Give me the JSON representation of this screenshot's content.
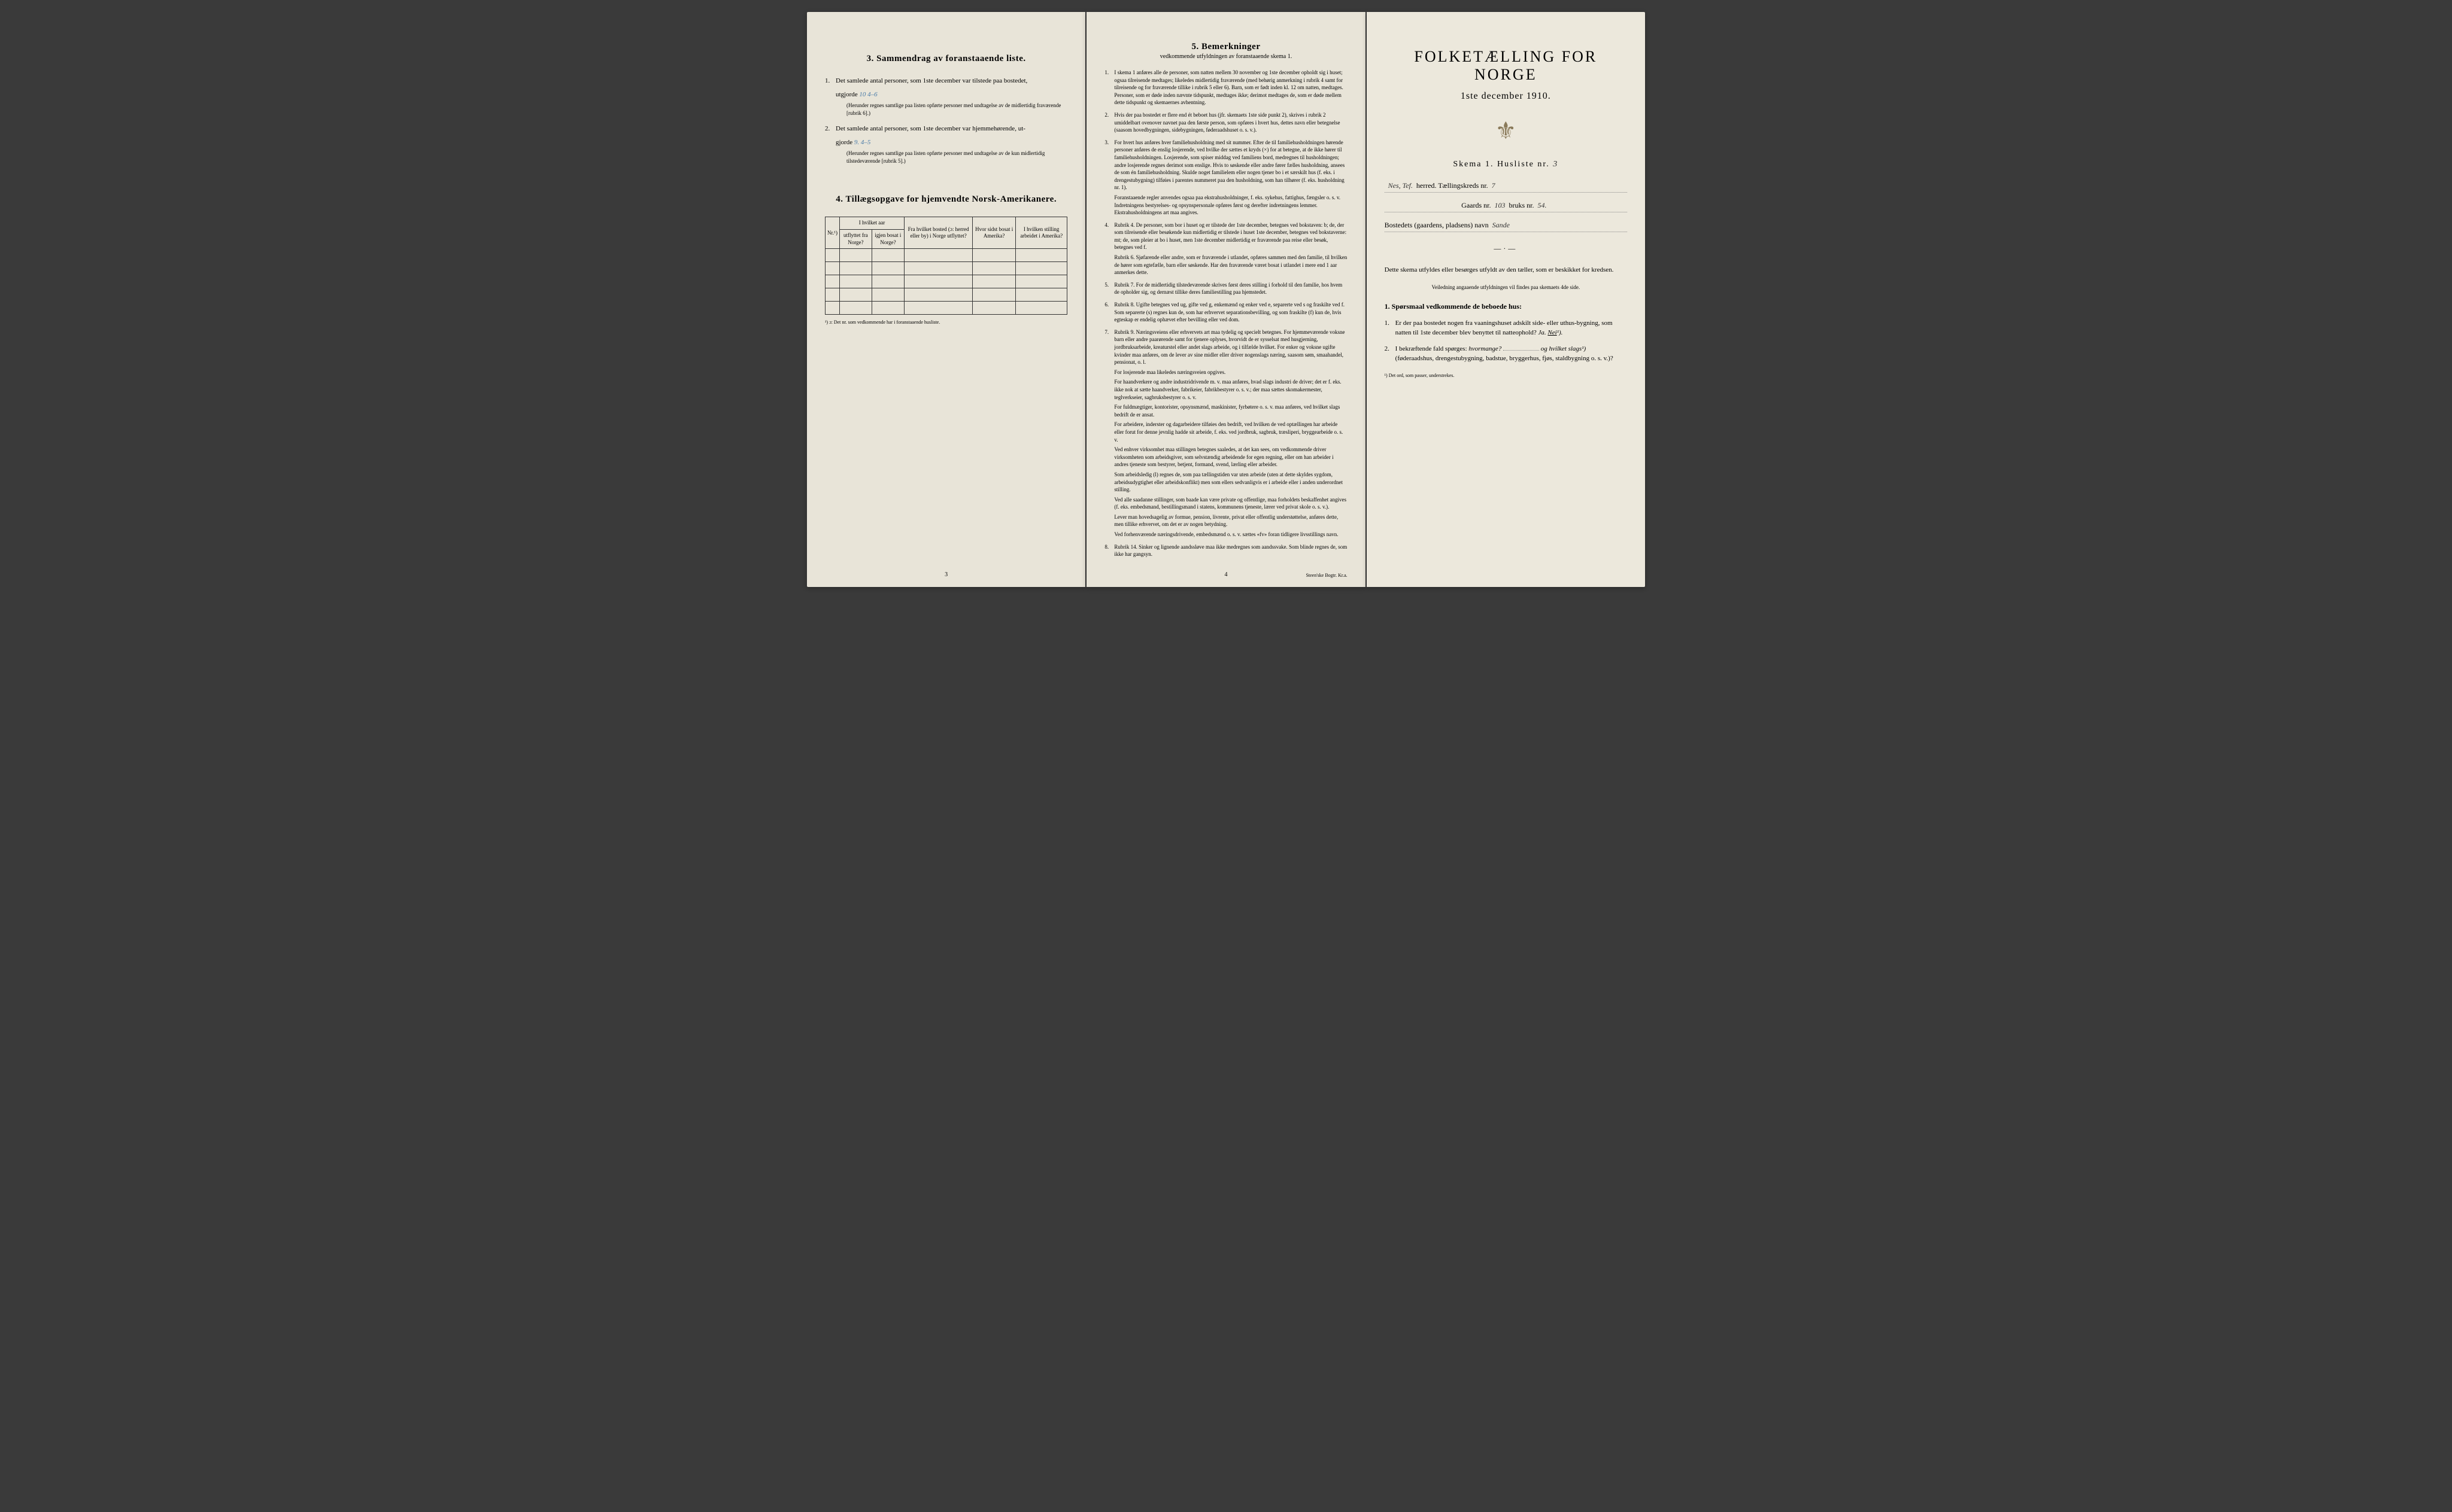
{
  "page_left": {
    "section3": {
      "title": "3.  Sammendrag av foranstaaende liste.",
      "item1_text": "Det samlede antal personer, som 1ste december var tilstede paa bostedet,",
      "item1_label": "utgjorde",
      "item1_value": "10  4–6",
      "item1_note": "(Herunder regnes samtlige paa listen opførte personer med undtagelse av de midlertidig fraværende [rubrik 6].)",
      "item2_text": "Det samlede antal personer, som 1ste december var hjemmehørende, ut-",
      "item2_label": "gjorde",
      "item2_value": "9.  4–5",
      "item2_note": "(Herunder regnes samtlige paa listen opførte personer med undtagelse av de kun midlertidig tilstedeværende [rubrik 5].)"
    },
    "section4": {
      "title": "4.  Tillægsopgave for hjemvendte Norsk-Amerikanere.",
      "headers": {
        "col1": "Nr.¹)",
        "col2a": "I hvilket aar",
        "col2b": "utflyttet fra Norge?",
        "col2c": "igjen bosat i Norge?",
        "col3": "Fra hvilket bosted (ɔ: herred eller by) i Norge utflyttet?",
        "col4": "Hvor sidst bosat i Amerika?",
        "col5": "I hvilken stilling arbeidet i Amerika?"
      },
      "footnote": "¹) ɔ: Det nr. som vedkommende har i foranstaaende husliste."
    },
    "page_number": "3"
  },
  "page_middle": {
    "section5": {
      "title": "5.  Bemerkninger",
      "subtitle": "vedkommende utfyldningen av foranstaaende skema 1.",
      "items": [
        {
          "n": "1.",
          "text": "I skema 1 anføres alle de personer, som natten mellem 30 november og 1ste december opholdt sig i huset; ogsaa tilreisende medtages; likeledes midlertidig fraværende (med behørig anmerkning i rubrik 4 samt for tilreisende og for fraværende tillike i rubrik 5 eller 6). Barn, som er født inden kl. 12 om natten, medtages. Personer, som er døde inden nævnte tidspunkt, medtages ikke; derimot medtages de, som er døde mellem dette tidspunkt og skemaernes avhentning."
        },
        {
          "n": "2.",
          "text": "Hvis der paa bostedet er flere end ét beboet hus (jfr. skemaets 1ste side punkt 2), skrives i rubrik 2 umiddelbart ovenover navnet paa den første person, som opføres i hvert hus, dettes navn eller betegnelse (saasom hovedbygningen, sidebygningen, føderaadshuset o. s. v.)."
        },
        {
          "n": "3.",
          "text": "For hvert hus anføres hver familiehusholdning med sit nummer. Efter de til familiehusholdningen hørende personer anføres de enslig losjerende, ved hvilke der sættes et kryds (×) for at betegne, at de ikke hører til familiehusholdningen. Losjerende, som spiser middag ved familiens bord, medregnes til husholdningen; andre losjerende regnes derimot som enslige. Hvis to søskende eller andre fører fælles husholdning, ansees de som én familiehusholdning. Skulde noget familielem eller nogen tjener bo i et særskilt hus (f. eks. i drengestubygning) tilføies i parentes nummeret paa den husholdning, som han tilhører (f. eks. husholdning nr. 1).",
          "sub": "Foranstaaende regler anvendes ogsaa paa ekstrahusholdninger, f. eks. sykehus, fattighus, fængsler o. s. v. Indretningens bestyrelses- og opsynspersonale opføres først og derefter indretningens lemmer. Ekstrahusholdningens art maa angives."
        },
        {
          "n": "4.",
          "text": "Rubrik 4. De personer, som bor i huset og er tilstede der 1ste december, betegnes ved bokstaven: b; de, der som tilreisende eller besøkende kun midlertidig er tilstede i huset 1ste december, betegnes ved bokstaverne: mt; de, som pleier at bo i huset, men 1ste december midlertidig er fraværende paa reise eller besøk, betegnes ved f.",
          "sub": "Rubrik 6. Sjøfarende eller andre, som er fraværende i utlandet, opføres sammen med den familie, til hvilken de hører som egtefælle, barn eller søskende. Har den fraværende været bosat i utlandet i mere end 1 aar anmerkes dette."
        },
        {
          "n": "5.",
          "text": "Rubrik 7. For de midlertidig tilstedeværende skrives først deres stilling i forhold til den familie, hos hvem de opholder sig, og dernæst tillike deres familiestilling paa hjemstedet."
        },
        {
          "n": "6.",
          "text": "Rubrik 8. Ugifte betegnes ved ug, gifte ved g, enkemænd og enker ved e, separerte ved s og fraskilte ved f. Som separerte (s) regnes kun de, som har erhvervet separationsbevilling, og som fraskilte (f) kun de, hvis egteskap er endelig ophævet efter bevilling eller ved dom."
        },
        {
          "n": "7.",
          "text": "Rubrik 9. Næringsveiens eller erhvervets art maa tydelig og specielt betegnes. For hjemmeværende voksne barn eller andre paarørende samt for tjenere oplyses, hvorvidt de er sysselsat med husgjerning, jordbruksarbeide, kreaturstel eller andet slags arbeide, og i tilfælde hvilket. For enker og voksne ugifte kvinder maa anføres, om de lever av sine midler eller driver nogenslags næring, saasom søm, smaahandel, pensionat, o. l.",
          "subs": [
            "For losjerende maa likeledes næringsveien opgives.",
            "For haandverkere og andre industridrivende m. v. maa anføres, hvad slags industri de driver; det er f. eks. ikke nok at sætte haandverker, fabrikeier, fabrikbestyrer o. s. v.; der maa sættes skomakermester, teglverkseier, sagbruksbestyrer o. s. v.",
            "For fuldmægtiger, kontorister, opsynsmænd, maskinister, fyrbøtere o. s. v. maa anføres, ved hvilket slags bedrift de er ansat.",
            "For arbeidere, inderster og dagarbeidere tilføies den bedrift, ved hvilken de ved optællingen har arbeide eller forut for denne jevnlig hadde sit arbeide, f. eks. ved jordbruk, sagbruk, træsliperi, bryggearbeide o. s. v.",
            "Ved enhver virksomhet maa stillingen betegnes saaledes, at det kan sees, om vedkommende driver virksomheten som arbeidsgiver, som selvstændig arbeidende for egen regning, eller om han arbeider i andres tjeneste som bestyrer, betjent, formand, svend, lærling eller arbeider.",
            "Som arbeidsledig (l) regnes de, som paa tællingstiden var uten arbeide (uten at dette skyldes sygdom, arbeidsudygtighet eller arbeidskonflikt) men som ellers sedvanligvis er i arbeide eller i anden underordnet stilling.",
            "Ved alle saadanne stillinger, som baade kan være private og offentlige, maa forholdets beskaffenhet angives (f. eks. embedsmand, bestillingsmand i statens, kommunens tjeneste, lærer ved privat skole o. s. v.).",
            "Lever man hovedsagelig av formue, pension, livrente, privat eller offentlig understøttelse, anføres dette, men tillike erhvervet, om det er av nogen betydning.",
            "Ved forhenværende næringsdrivende, embedsmænd o. s. v. sættes «fv» foran tidligere livsstillings navn."
          ]
        },
        {
          "n": "8.",
          "text": "Rubrik 14. Sinker og lignende aandssløve maa ikke medregnes som aandssvake. Som blinde regnes de, som ikke har gangsyn."
        }
      ]
    },
    "page_number": "4",
    "printer": "Steen'ske Bogtr.  Kr.a."
  },
  "page_right": {
    "title": "FOLKETÆLLING FOR NORGE",
    "subtitle": "1ste december 1910.",
    "skema": "Skema 1.  Husliste nr.",
    "husliste_nr": "3",
    "herred_value": "Nes, Tef.",
    "herred_label": "herred.  Tællingskreds nr.",
    "kreds_nr": "7",
    "gaards_label": "Gaards nr.",
    "gaards_nr": "103",
    "bruks_label": "bruks nr.",
    "bruks_nr": "54.",
    "bosted_label": "Bostedets (gaardens, pladsens) navn",
    "bosted_value": "Sande",
    "instructions": "Dette skema utfyldes eller besørges utfyldt av den tæller, som er beskikket for kredsen.",
    "instructions_small": "Veiledning angaaende utfyldningen vil findes paa skemaets 4de side.",
    "q_header": "1. Spørsmaal vedkommende de beboede hus:",
    "q1": {
      "text": "Er der paa bostedet nogen fra vaaningshuset adskilt side- eller uthus-bygning, som natten til 1ste december blev benyttet til natteophold?",
      "ja": "Ja.",
      "nei": "Nei",
      "sup": "¹)."
    },
    "q2": {
      "text": "I bekræftende fald spørges:",
      "hvormange": "hvormange?",
      "og": "og hvilket slags¹)",
      "paren": "(føderaadshus, drengestubygning, badstue, bryggerhus, fjøs, staldbygning o. s. v.)?"
    },
    "footnote": "¹) Det ord, som passer, understrekes."
  }
}
